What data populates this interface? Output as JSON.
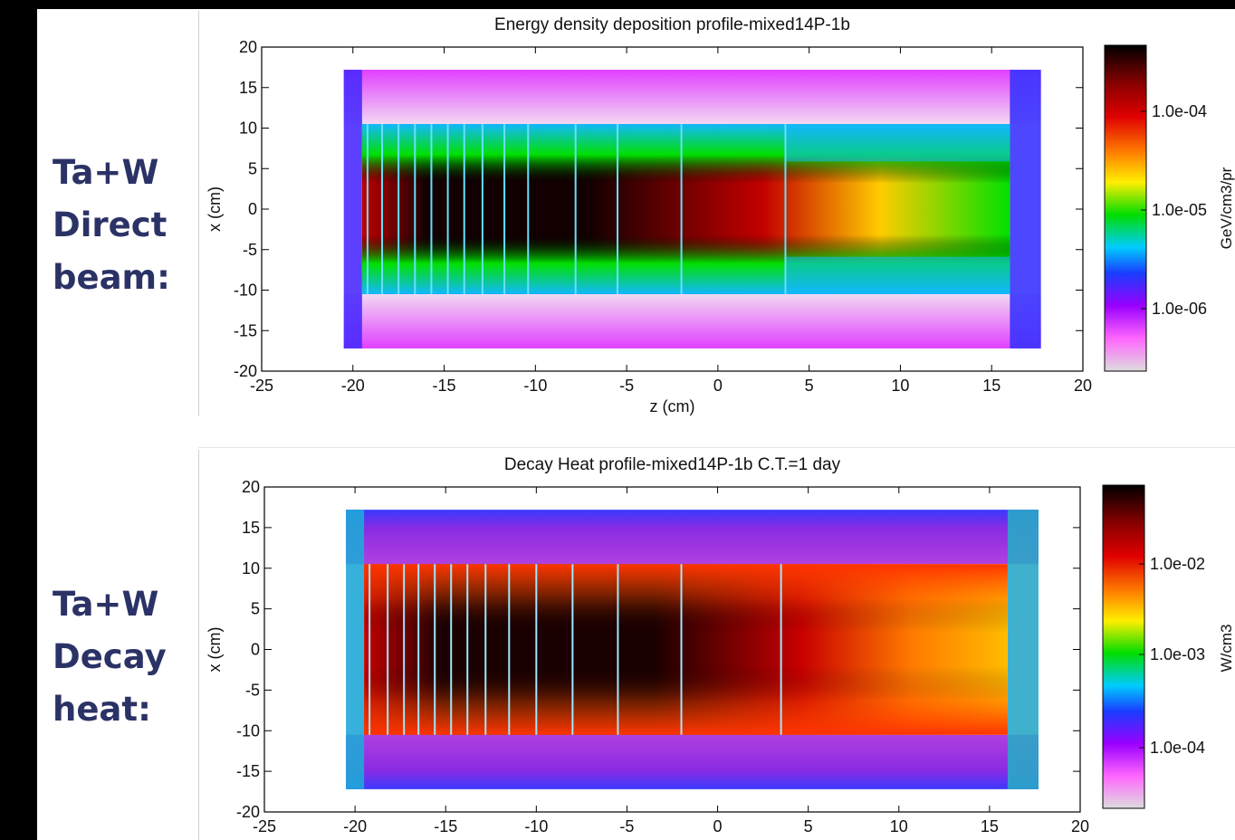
{
  "labels": {
    "top": [
      "Ta+W",
      "Direct",
      "beam:"
    ],
    "bottom": [
      "Ta+W",
      "Decay",
      "heat:"
    ]
  },
  "chart_data": [
    {
      "type": "heatmap",
      "title": "Energy density deposition profile-mixed14P-1b",
      "xlabel": "z (cm)",
      "ylabel": "x (cm)",
      "xlim": [
        -25,
        20
      ],
      "ylim": [
        -20,
        20
      ],
      "xticks": [
        -25,
        -20,
        -15,
        -10,
        -5,
        0,
        5,
        10,
        15,
        20
      ],
      "yticks": [
        20,
        15,
        10,
        5,
        0,
        -5,
        -10,
        -15,
        -20
      ],
      "colorbar": {
        "label": "GeV/cm3/pr",
        "ticks": [
          "1.0e-04",
          "1.0e-05",
          "1.0e-06"
        ],
        "scale": "log"
      },
      "target_region": {
        "z": [
          -19.5,
          16
        ],
        "x": [
          -10.5,
          10.5
        ]
      },
      "shield_region": {
        "z": [
          -20.5,
          17.7
        ],
        "x": [
          -17.2,
          17.2
        ]
      },
      "plate_boundaries_z": [
        -19.2,
        -18.4,
        -17.5,
        -16.6,
        -15.7,
        -14.8,
        -13.9,
        -12.9,
        -11.7,
        -10.4,
        -7.8,
        -5.5,
        -2.0,
        3.7
      ],
      "colors": {
        "hot": "#120000",
        "high": "#c40000",
        "mid": "#ffcc00",
        "low": "#00e000",
        "lower": "#12b8ff",
        "lowest": "#e040ff"
      }
    },
    {
      "type": "heatmap",
      "title": "Decay Heat  profile-mixed14P-1b C.T.=1 day",
      "xlabel": "",
      "ylabel": "x (cm)",
      "xlim": [
        -25,
        20
      ],
      "ylim": [
        -20,
        20
      ],
      "xticks": [
        -25,
        -20,
        -15,
        -10,
        -5,
        0,
        5,
        10,
        15,
        20
      ],
      "yticks": [
        20,
        15,
        10,
        5,
        0,
        -5,
        -10,
        -15,
        -20
      ],
      "colorbar": {
        "label": "W/cm3",
        "ticks": [
          "1.0e-02",
          "1.0e-03",
          "1.0e-04"
        ],
        "scale": "log"
      },
      "target_region": {
        "z": [
          -19.5,
          16
        ],
        "x": [
          -10.5,
          10.5
        ]
      },
      "shield_region": {
        "z": [
          -20.5,
          17.7
        ],
        "x": [
          -17.2,
          17.2
        ]
      },
      "plate_boundaries_z": [
        -19.2,
        -18.2,
        -17.3,
        -16.5,
        -15.6,
        -14.7,
        -13.8,
        -12.8,
        -11.5,
        -10.0,
        -8.0,
        -5.5,
        -2.0,
        3.5
      ],
      "colors": {
        "hot": "#1a0000",
        "high": "#c80000",
        "mid": "#ffbb00",
        "low": "#2ec96e",
        "lower": "#1565ff",
        "lowest": "#8a2be2"
      }
    }
  ]
}
